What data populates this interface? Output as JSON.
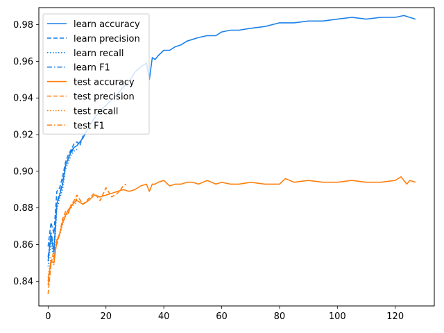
{
  "chart_data": {
    "type": "line",
    "xlim": [
      -3.2,
      133.5
    ],
    "ylim": [
      0.8265,
      0.9893
    ],
    "x_ticks": [
      0,
      20,
      40,
      60,
      80,
      100,
      120
    ],
    "y_ticks": [
      0.84,
      0.86,
      0.88,
      0.9,
      0.92,
      0.94,
      0.96,
      0.98
    ],
    "y_tick_labels": [
      "0.84",
      "0.86",
      "0.88",
      "0.90",
      "0.92",
      "0.94",
      "0.96",
      "0.98"
    ],
    "grid": false,
    "legend_position": "upper-left",
    "colors": {
      "learn": "#1a80e8",
      "test": "#ff7f0e"
    },
    "series": [
      {
        "name": "learn accuracy",
        "group": "learn",
        "style": "solid",
        "x": [
          0,
          1,
          2,
          3,
          4,
          5,
          6,
          7,
          8,
          9,
          10,
          12,
          14,
          16,
          18,
          20,
          22,
          24,
          26,
          28,
          30,
          32,
          34,
          35,
          36,
          37,
          38,
          40,
          42,
          44,
          46,
          48,
          50,
          52,
          55,
          58,
          60,
          63,
          66,
          70,
          75,
          80,
          85,
          90,
          95,
          100,
          105,
          110,
          115,
          120,
          123,
          125,
          127
        ],
        "y": [
          0.851,
          0.865,
          0.856,
          0.882,
          0.887,
          0.893,
          0.903,
          0.907,
          0.911,
          0.913,
          0.914,
          0.918,
          0.924,
          0.929,
          0.933,
          0.936,
          0.939,
          0.942,
          0.946,
          0.949,
          0.954,
          0.957,
          0.959,
          0.95,
          0.962,
          0.961,
          0.963,
          0.966,
          0.966,
          0.968,
          0.969,
          0.971,
          0.972,
          0.973,
          0.974,
          0.974,
          0.976,
          0.977,
          0.977,
          0.978,
          0.979,
          0.981,
          0.981,
          0.982,
          0.982,
          0.983,
          0.984,
          0.983,
          0.984,
          0.984,
          0.985,
          0.984,
          0.983
        ]
      },
      {
        "name": "learn precision",
        "group": "learn",
        "style": "dashed",
        "x": [
          0,
          1,
          2,
          3,
          4,
          5,
          6,
          7,
          8,
          9,
          10,
          11,
          12,
          13
        ],
        "y": [
          0.859,
          0.872,
          0.866,
          0.889,
          0.891,
          0.897,
          0.905,
          0.909,
          0.912,
          0.915,
          0.916,
          0.914,
          0.919,
          0.921
        ]
      },
      {
        "name": "learn recall",
        "group": "learn",
        "style": "dotted",
        "x": [
          0,
          1,
          2,
          3,
          4,
          5,
          6,
          7,
          8,
          9,
          10
        ],
        "y": [
          0.848,
          0.862,
          0.852,
          0.879,
          0.885,
          0.89,
          0.901,
          0.905,
          0.909,
          0.911,
          0.912
        ]
      },
      {
        "name": "learn F1",
        "group": "learn",
        "style": "dashdot",
        "x": [
          0,
          1,
          2,
          3,
          4,
          5,
          6,
          7,
          8,
          9,
          10
        ],
        "y": [
          0.853,
          0.867,
          0.858,
          0.883,
          0.888,
          0.894,
          0.903,
          0.907,
          0.91,
          0.913,
          0.914
        ]
      },
      {
        "name": "test accuracy",
        "group": "test",
        "style": "solid",
        "x": [
          0,
          1,
          2,
          3,
          4,
          5,
          6,
          7,
          8,
          9,
          10,
          12,
          14,
          16,
          18,
          20,
          22,
          24,
          26,
          28,
          30,
          32,
          34,
          35,
          36,
          37,
          38,
          40,
          42,
          44,
          46,
          48,
          50,
          52,
          55,
          58,
          60,
          63,
          66,
          70,
          75,
          80,
          82,
          85,
          90,
          95,
          100,
          105,
          110,
          115,
          120,
          122,
          123,
          124,
          125,
          127
        ],
        "y": [
          0.84,
          0.851,
          0.85,
          0.862,
          0.866,
          0.872,
          0.876,
          0.879,
          0.881,
          0.883,
          0.884,
          0.882,
          0.884,
          0.887,
          0.886,
          0.887,
          0.888,
          0.889,
          0.89,
          0.889,
          0.89,
          0.892,
          0.893,
          0.889,
          0.893,
          0.893,
          0.894,
          0.895,
          0.892,
          0.893,
          0.893,
          0.894,
          0.894,
          0.893,
          0.895,
          0.893,
          0.894,
          0.893,
          0.893,
          0.894,
          0.893,
          0.893,
          0.896,
          0.894,
          0.895,
          0.894,
          0.894,
          0.895,
          0.894,
          0.894,
          0.895,
          0.897,
          0.895,
          0.893,
          0.895,
          0.894
        ]
      },
      {
        "name": "test precision",
        "group": "test",
        "style": "dashed",
        "x": [
          0,
          1,
          2,
          3,
          4,
          5,
          6,
          7,
          8,
          9,
          10,
          12,
          14,
          16,
          18,
          20,
          22,
          24,
          26,
          27
        ],
        "y": [
          0.833,
          0.849,
          0.857,
          0.86,
          0.866,
          0.874,
          0.878,
          0.877,
          0.882,
          0.884,
          0.887,
          0.882,
          0.885,
          0.888,
          0.884,
          0.891,
          0.886,
          0.888,
          0.892,
          0.893
        ]
      },
      {
        "name": "test recall",
        "group": "test",
        "style": "dotted",
        "x": [
          0,
          1,
          2,
          3,
          4,
          5,
          6,
          7,
          8,
          9,
          10
        ],
        "y": [
          0.842,
          0.853,
          0.849,
          0.863,
          0.865,
          0.871,
          0.875,
          0.878,
          0.88,
          0.882,
          0.883
        ]
      },
      {
        "name": "test F1",
        "group": "test",
        "style": "dashdot",
        "x": [
          0,
          1,
          2,
          3,
          4,
          5,
          6,
          7,
          8,
          9,
          10
        ],
        "y": [
          0.838,
          0.851,
          0.852,
          0.861,
          0.866,
          0.872,
          0.876,
          0.878,
          0.881,
          0.883,
          0.885
        ]
      }
    ]
  }
}
